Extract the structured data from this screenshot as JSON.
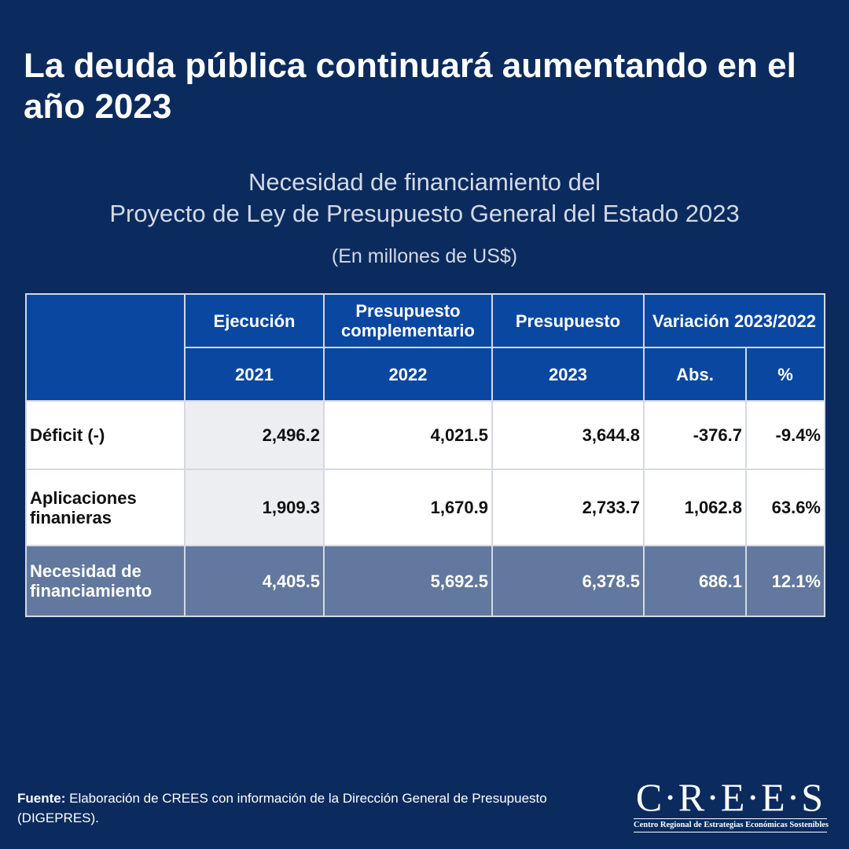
{
  "header": {
    "title": "La deuda pública continuará aumentando en el año 2023",
    "subtitle_line1": "Necesidad de financiamiento del",
    "subtitle_line2": "Proyecto de Ley de Presupuesto General del Estado 2023",
    "units": "(En millones de US$)"
  },
  "table": {
    "col_headers": {
      "ejecucion": "Ejecución",
      "presupuesto_complementario": "Presupuesto complementario",
      "presupuesto": "Presupuesto",
      "variacion": "Variación 2023/2022"
    },
    "sub_headers": [
      "2021",
      "2022",
      "2023",
      "Abs.",
      "%"
    ],
    "rows": [
      {
        "label": "Déficit (-)",
        "values": [
          "2,496.2",
          "4,021.5",
          "3,644.8",
          "-376.7",
          "-9.4%"
        ]
      },
      {
        "label": "Aplicaciones finanieras",
        "values": [
          "1,909.3",
          "1,670.9",
          "2,733.7",
          "1,062.8",
          "63.6%"
        ]
      },
      {
        "label": "Necesidad de financiamiento",
        "values": [
          "4,405.5",
          "5,692.5",
          "6,378.5",
          "686.1",
          "12.1%"
        ]
      }
    ]
  },
  "footer": {
    "source_label": "Fuente:",
    "source_text": " Elaboración de CREES con información de la Dirección General de Presupuesto (DIGEPRES)."
  },
  "logo": {
    "wordmark": "C·R·E·E·S",
    "tagline": "Centro Regional de Estrategias Económicas Sostenibles"
  },
  "colors": {
    "background": "#0b2b5e",
    "header_blue": "#0a47a0",
    "total_row": "#62789e"
  }
}
